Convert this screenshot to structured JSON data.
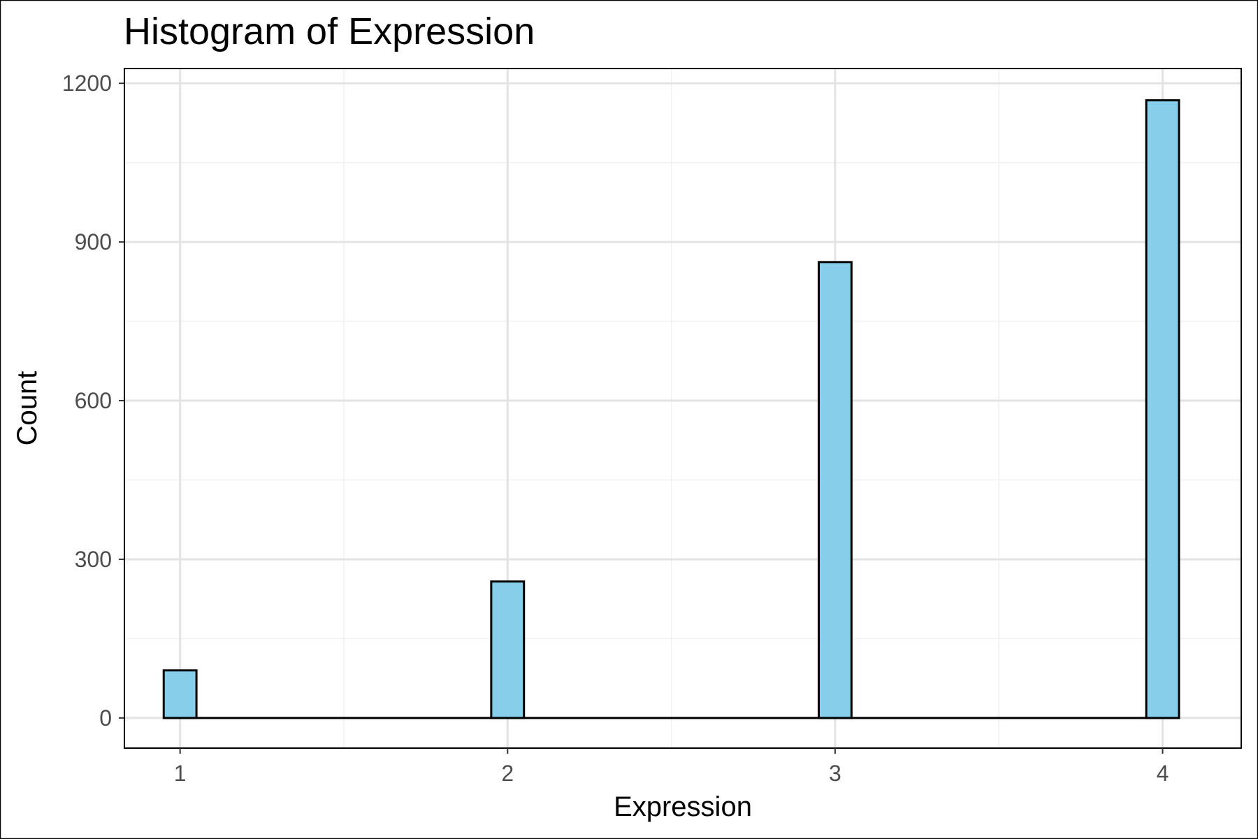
{
  "chart_data": {
    "type": "bar",
    "title": "Histogram of Expression",
    "xlabel": "Expression",
    "ylabel": "Count",
    "x": [
      1,
      2,
      3,
      4
    ],
    "values": [
      90,
      258,
      862,
      1168
    ],
    "bin_width": 0.1,
    "x_ticks": [
      1,
      2,
      3,
      4
    ],
    "y_ticks": [
      0,
      300,
      600,
      900,
      1200
    ],
    "xlim": [
      0.83,
      4.24
    ],
    "ylim": [
      -57,
      1228
    ],
    "grid": true,
    "legend": "none",
    "bar_fill": "#87CEEB",
    "bar_stroke": "#000000",
    "grid_major_color": "#e3e3e3",
    "grid_minor_color": "#f1f1f1"
  }
}
